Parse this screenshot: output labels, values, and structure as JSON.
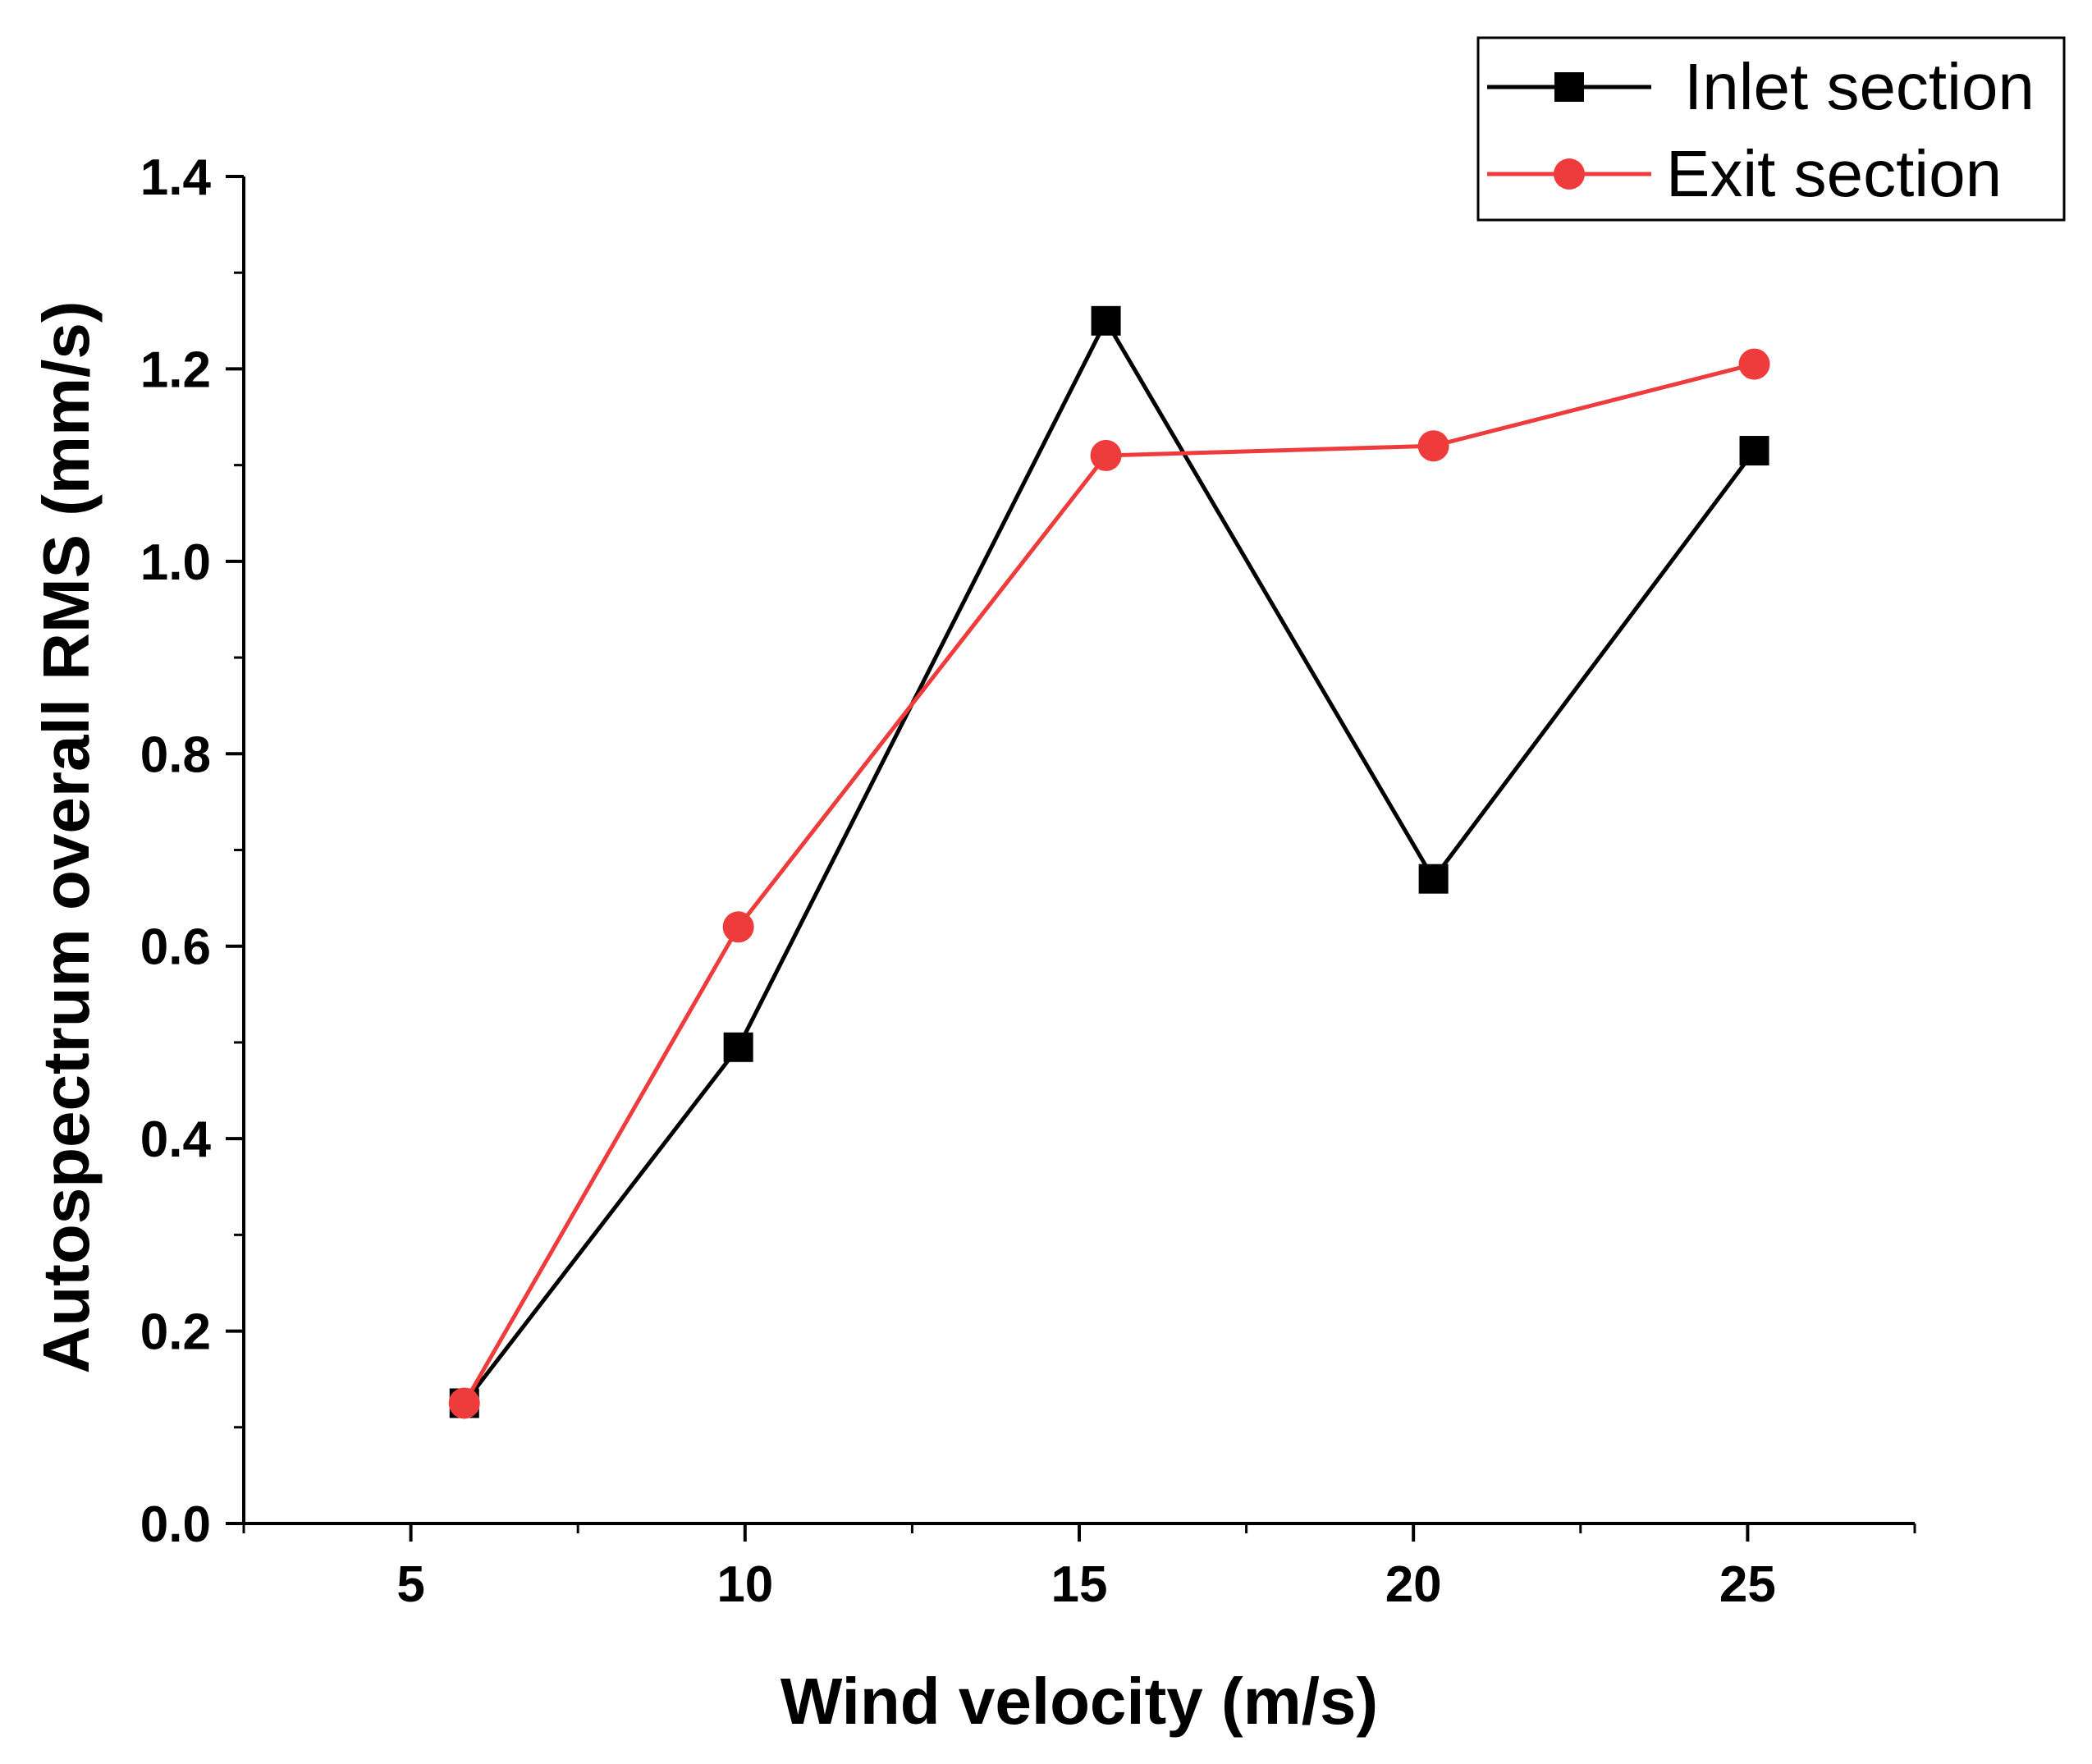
{
  "chart_data": {
    "type": "line",
    "title": "",
    "xlabel": "Wind velocity (m/s)",
    "ylabel": "Autospectrum overall RMS (mm/s)",
    "xlim": [
      2.5,
      27.5
    ],
    "ylim": [
      0.0,
      1.4
    ],
    "xticks": [
      5,
      10,
      15,
      20,
      25
    ],
    "xtick_labels": [
      "5",
      "10",
      "15",
      "20",
      "25"
    ],
    "yticks": [
      0.0,
      0.2,
      0.4,
      0.6,
      0.8,
      1.0,
      1.2,
      1.4
    ],
    "ytick_labels": [
      "0.0",
      "0.2",
      "0.4",
      "0.6",
      "0.8",
      "1.0",
      "1.2",
      "1.4"
    ],
    "grid": false,
    "legend_position": "top-right",
    "series": [
      {
        "name": "Inlet section",
        "color": "#000000",
        "marker": "square",
        "x": [
          5.8,
          9.9,
          15.4,
          20.3,
          25.1
        ],
        "y": [
          0.125,
          0.495,
          1.25,
          0.67,
          1.115
        ]
      },
      {
        "name": "Exit section",
        "color": "#ee3b3b",
        "marker": "circle",
        "x": [
          5.8,
          9.9,
          15.4,
          20.3,
          25.1
        ],
        "y": [
          0.125,
          0.62,
          1.11,
          1.12,
          1.205
        ]
      }
    ]
  }
}
